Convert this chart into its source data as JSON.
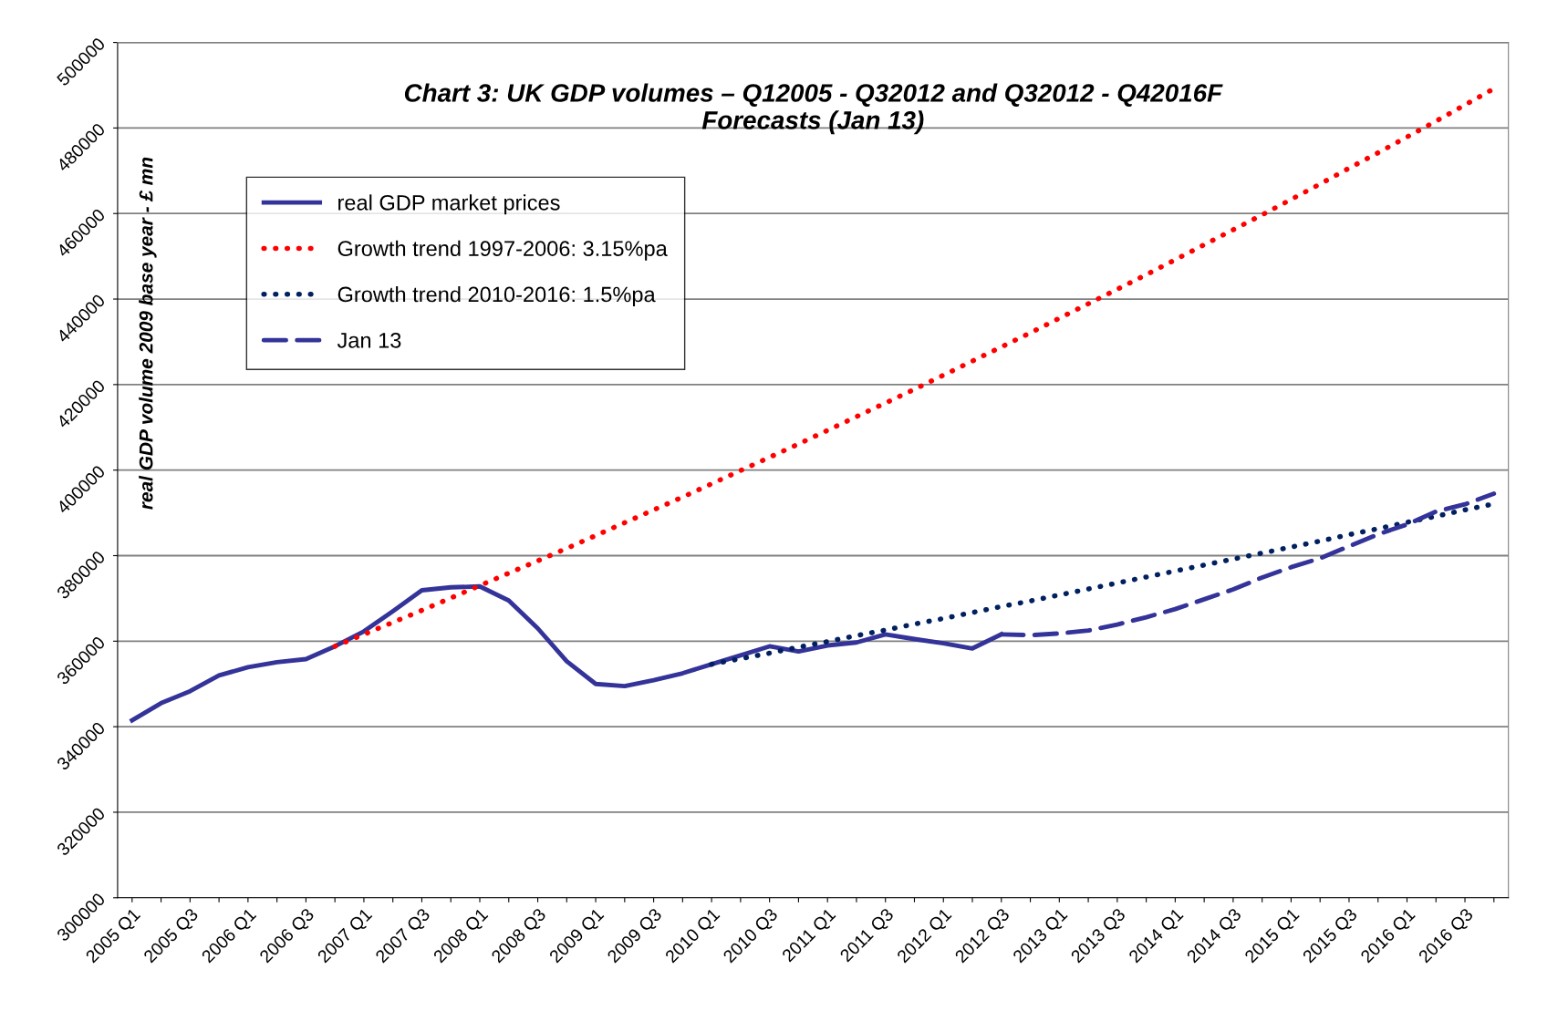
{
  "chart_data": {
    "type": "line",
    "title": "Chart 3: UK GDP volumes – Q12005 - Q32012 and Q32012 - Q42016F\nForecasts (Jan 13)",
    "ylabel": "real GDP volume 2009 base year - £ mn",
    "categories": [
      "2005 Q1",
      null,
      "2005 Q3",
      null,
      "2006 Q1",
      null,
      "2006 Q3",
      null,
      "2007 Q1",
      null,
      "2007 Q3",
      null,
      "2008 Q1",
      null,
      "2008 Q3",
      null,
      "2009 Q1",
      null,
      "2009 Q3",
      null,
      "2010 Q1",
      null,
      "2010 Q3",
      null,
      "2011 Q1",
      null,
      "2011 Q3",
      null,
      "2012 Q1",
      null,
      "2012 Q3",
      null,
      "2013 Q1",
      null,
      "2013 Q3",
      null,
      "2014 Q1",
      null,
      "2014 Q3",
      null,
      "2015 Q1",
      null,
      "2015 Q3",
      null,
      "2016 Q1",
      null,
      "2016 Q3",
      null
    ],
    "series": [
      {
        "name": "real GDP market prices",
        "color": "#333399",
        "line_style": "solid",
        "values": [
          341500,
          345500,
          348300,
          352000,
          353900,
          355100,
          355800,
          358800,
          362300,
          367000,
          371900,
          372600,
          372800,
          369500,
          363000,
          355300,
          350000,
          349500,
          350900,
          352500,
          354600,
          356700,
          358800,
          357600,
          359000,
          359700,
          361600,
          360500,
          359500,
          358300,
          361600,
          null,
          null,
          null,
          null,
          null,
          null,
          null,
          null,
          null,
          null,
          null,
          null,
          null,
          null,
          null,
          null,
          null
        ]
      },
      {
        "name": "Growth trend 1997-2006: 3.15%pa",
        "color": "#ff0000",
        "line_style": "dotted",
        "values": [
          null,
          null,
          null,
          null,
          null,
          null,
          null,
          358800,
          361600,
          364400,
          367200,
          370100,
          373000,
          375900,
          378800,
          381700,
          384700,
          387700,
          390700,
          393700,
          396800,
          399900,
          403000,
          406100,
          409300,
          412500,
          415700,
          418900,
          422200,
          425500,
          428800,
          432100,
          435500,
          438900,
          442300,
          445700,
          449200,
          452700,
          456200,
          459700,
          463300,
          466900,
          470600,
          474200,
          477900,
          481600,
          485400,
          489200
        ]
      },
      {
        "name": "Growth trend 2010-2016: 1.5%pa",
        "color": "#002060",
        "line_style": "dotted",
        "values": [
          null,
          null,
          null,
          null,
          null,
          null,
          null,
          null,
          null,
          null,
          null,
          null,
          null,
          null,
          null,
          null,
          null,
          null,
          null,
          null,
          354600,
          355900,
          357200,
          358600,
          359900,
          361300,
          362600,
          364000,
          365300,
          366700,
          368100,
          369400,
          370800,
          372200,
          373600,
          375000,
          376400,
          377800,
          379200,
          380600,
          382000,
          383400,
          384900,
          386300,
          387800,
          389200,
          390700,
          392100
        ]
      },
      {
        "name": "Jan 13",
        "color": "#333399",
        "line_style": "dashed",
        "values": [
          null,
          null,
          null,
          null,
          null,
          null,
          null,
          null,
          null,
          null,
          null,
          null,
          null,
          null,
          null,
          null,
          null,
          null,
          null,
          null,
          null,
          null,
          null,
          null,
          null,
          null,
          null,
          null,
          null,
          null,
          361600,
          361400,
          361800,
          362500,
          363900,
          365600,
          367500,
          369800,
          372100,
          374900,
          377300,
          379400,
          382200,
          385000,
          387300,
          390300,
          392000,
          394500
        ]
      }
    ],
    "ylim": [
      300000,
      500000
    ],
    "yticks": [
      300000,
      320000,
      340000,
      360000,
      380000,
      400000,
      420000,
      440000,
      460000,
      480000,
      500000
    ],
    "grid": "y",
    "legend": "top left",
    "marker": "none"
  }
}
